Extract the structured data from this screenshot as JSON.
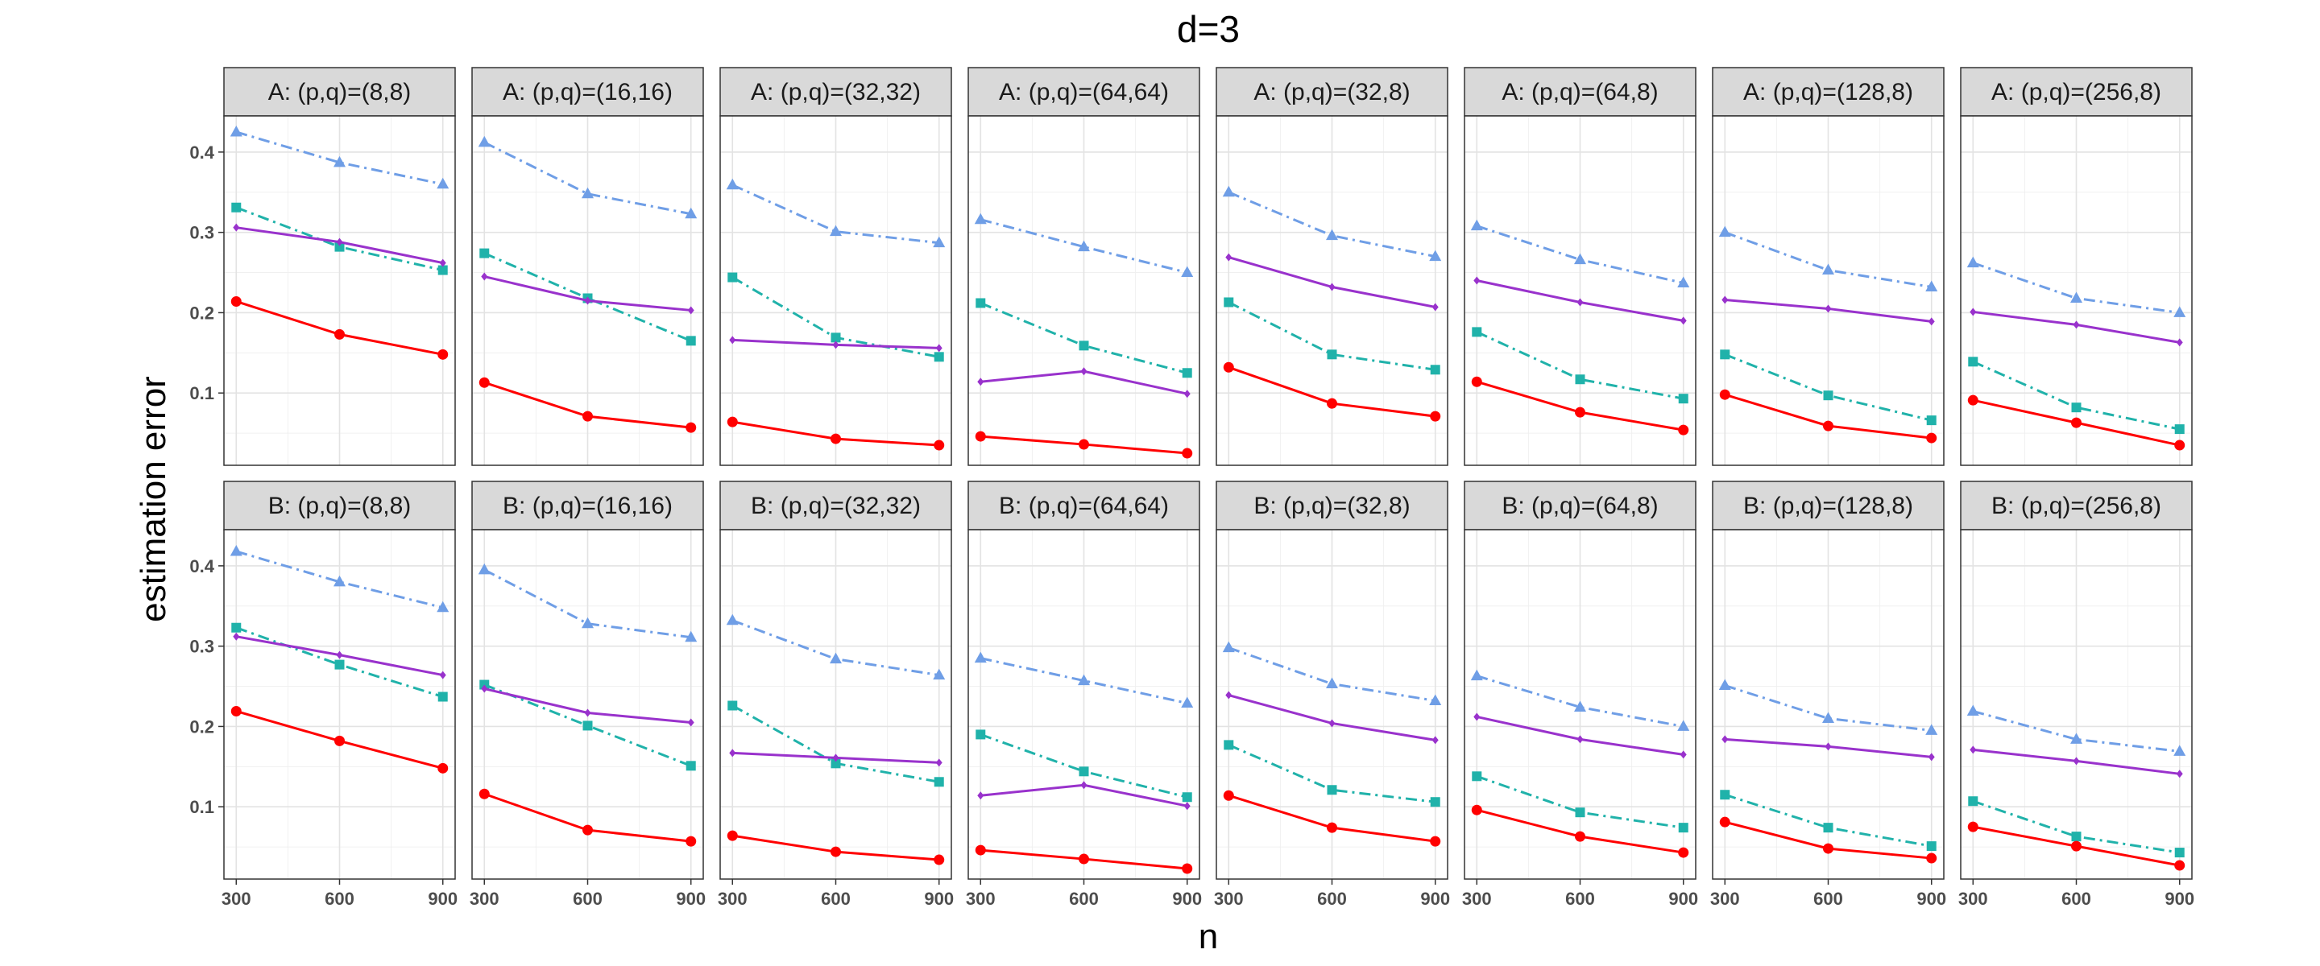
{
  "chart_data": {
    "type": "line",
    "title": "d=3",
    "xlabel": "n",
    "ylabel": "estimation error",
    "x": [
      300,
      600,
      900
    ],
    "x_ticks": [
      "300",
      "600",
      "900"
    ],
    "y_ticks": [
      "0.1",
      "0.2",
      "0.3",
      "0.4"
    ],
    "y_tick_values": [
      0.1,
      0.2,
      0.3,
      0.4
    ],
    "xlim": [
      290,
      910
    ],
    "ylim": [
      0.01,
      0.445
    ],
    "grid": true,
    "series_styles": [
      {
        "name": "blue-triangle",
        "color": "#6f9ee6",
        "dash": "dotdash",
        "marker": "triangle"
      },
      {
        "name": "teal-square",
        "color": "#20b2aa",
        "dash": "dotdash",
        "marker": "square"
      },
      {
        "name": "purple-diamond",
        "color": "#9932cc",
        "dash": "solid",
        "marker": "diamond"
      },
      {
        "name": "red-circle",
        "color": "#ff0000",
        "dash": "solid",
        "marker": "circle"
      }
    ],
    "facets": [
      {
        "label": "A: (p,q)=(8,8)",
        "series": [
          [
            0.425,
            0.387,
            0.36
          ],
          [
            0.331,
            0.282,
            0.253
          ],
          [
            0.306,
            0.288,
            0.262
          ],
          [
            0.214,
            0.173,
            0.148
          ]
        ]
      },
      {
        "label": "A: (p,q)=(16,16)",
        "series": [
          [
            0.412,
            0.348,
            0.323
          ],
          [
            0.274,
            0.218,
            0.165
          ],
          [
            0.245,
            0.215,
            0.203
          ],
          [
            0.113,
            0.071,
            0.057
          ]
        ]
      },
      {
        "label": "A: (p,q)=(32,32)",
        "series": [
          [
            0.359,
            0.301,
            0.287
          ],
          [
            0.244,
            0.169,
            0.145
          ],
          [
            0.166,
            0.16,
            0.156
          ],
          [
            0.064,
            0.043,
            0.035
          ]
        ]
      },
      {
        "label": "A: (p,q)=(64,64)",
        "series": [
          [
            0.316,
            0.282,
            0.25
          ],
          [
            0.212,
            0.159,
            0.125
          ],
          [
            0.114,
            0.127,
            0.099
          ],
          [
            0.046,
            0.036,
            0.025
          ]
        ]
      },
      {
        "label": "A: (p,q)=(32,8)",
        "series": [
          [
            0.35,
            0.296,
            0.27
          ],
          [
            0.213,
            0.148,
            0.129
          ],
          [
            0.269,
            0.232,
            0.207
          ],
          [
            0.132,
            0.087,
            0.071
          ]
        ]
      },
      {
        "label": "A: (p,q)=(64,8)",
        "series": [
          [
            0.308,
            0.266,
            0.237
          ],
          [
            0.176,
            0.117,
            0.093
          ],
          [
            0.24,
            0.213,
            0.19
          ],
          [
            0.114,
            0.076,
            0.054
          ]
        ]
      },
      {
        "label": "A: (p,q)=(128,8)",
        "series": [
          [
            0.3,
            0.253,
            0.232
          ],
          [
            0.148,
            0.097,
            0.066
          ],
          [
            0.216,
            0.205,
            0.189
          ],
          [
            0.098,
            0.059,
            0.044
          ]
        ]
      },
      {
        "label": "A: (p,q)=(256,8)",
        "series": [
          [
            0.262,
            0.218,
            0.2
          ],
          [
            0.139,
            0.082,
            0.055
          ],
          [
            0.201,
            0.185,
            0.163
          ],
          [
            0.091,
            0.063,
            0.035
          ]
        ]
      },
      {
        "label": "B: (p,q)=(8,8)",
        "series": [
          [
            0.418,
            0.38,
            0.348
          ],
          [
            0.323,
            0.277,
            0.237
          ],
          [
            0.312,
            0.289,
            0.264
          ],
          [
            0.219,
            0.182,
            0.148
          ]
        ]
      },
      {
        "label": "B: (p,q)=(16,16)",
        "series": [
          [
            0.395,
            0.328,
            0.311
          ],
          [
            0.252,
            0.201,
            0.151
          ],
          [
            0.247,
            0.217,
            0.205
          ],
          [
            0.116,
            0.071,
            0.057
          ]
        ]
      },
      {
        "label": "B: (p,q)=(32,32)",
        "series": [
          [
            0.332,
            0.284,
            0.264
          ],
          [
            0.226,
            0.154,
            0.131
          ],
          [
            0.167,
            0.161,
            0.155
          ],
          [
            0.064,
            0.044,
            0.034
          ]
        ]
      },
      {
        "label": "B: (p,q)=(64,64)",
        "series": [
          [
            0.285,
            0.257,
            0.229
          ],
          [
            0.19,
            0.144,
            0.112
          ],
          [
            0.114,
            0.127,
            0.101
          ],
          [
            0.046,
            0.035,
            0.023
          ]
        ]
      },
      {
        "label": "B: (p,q)=(32,8)",
        "series": [
          [
            0.298,
            0.253,
            0.232
          ],
          [
            0.177,
            0.121,
            0.106
          ],
          [
            0.239,
            0.204,
            0.183
          ],
          [
            0.114,
            0.074,
            0.057
          ]
        ]
      },
      {
        "label": "B: (p,q)=(64,8)",
        "series": [
          [
            0.263,
            0.224,
            0.2
          ],
          [
            0.138,
            0.093,
            0.074
          ],
          [
            0.212,
            0.184,
            0.165
          ],
          [
            0.096,
            0.063,
            0.043
          ]
        ]
      },
      {
        "label": "B: (p,q)=(128,8)",
        "series": [
          [
            0.251,
            0.21,
            0.195
          ],
          [
            0.115,
            0.074,
            0.051
          ],
          [
            0.184,
            0.175,
            0.162
          ],
          [
            0.081,
            0.048,
            0.036
          ]
        ]
      },
      {
        "label": "B: (p,q)=(256,8)",
        "series": [
          [
            0.219,
            0.184,
            0.169
          ],
          [
            0.107,
            0.063,
            0.043
          ],
          [
            0.171,
            0.157,
            0.141
          ],
          [
            0.075,
            0.051,
            0.027
          ]
        ]
      }
    ]
  }
}
